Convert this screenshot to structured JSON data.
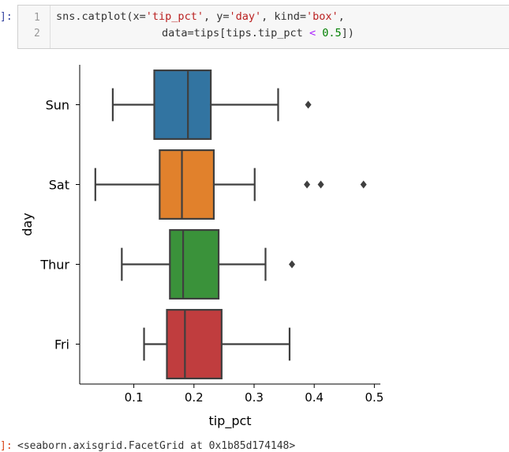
{
  "cell": {
    "in_prompt": "]:",
    "line_numbers": [
      "1",
      "2"
    ],
    "line1": {
      "t1": "sns.catplot(x=",
      "s1": "'tip_pct'",
      "t2": ", y=",
      "s2": "'day'",
      "t3": ", kind=",
      "s3": "'box'",
      "t4": ","
    },
    "line2": {
      "t1": "data=tips[tips.tip_pct ",
      "op": "<",
      "t2": " ",
      "num": "0.5",
      "t3": "])"
    },
    "out_prompt": "]:",
    "out_text": "<seaborn.axisgrid.FacetGrid at 0x1b85d174148>"
  },
  "chart_data": {
    "type": "box",
    "orientation": "horizontal",
    "xlabel": "tip_pct",
    "ylabel": "day",
    "xlim": [
      0.01,
      0.51
    ],
    "xticks": [
      0.1,
      0.2,
      0.3,
      0.4,
      0.5
    ],
    "xtick_labels": [
      "0.1",
      "0.2",
      "0.3",
      "0.4",
      "0.5"
    ],
    "categories": [
      "Sun",
      "Sat",
      "Thur",
      "Fri"
    ],
    "boxes": [
      {
        "category": "Sun",
        "color": "#3274a1",
        "whisker_low": 0.065,
        "q1": 0.134,
        "median": 0.19,
        "q3": 0.228,
        "whisker_high": 0.34,
        "outliers": [
          0.39
        ]
      },
      {
        "category": "Sat",
        "color": "#e1812c",
        "whisker_low": 0.036,
        "q1": 0.143,
        "median": 0.18,
        "q3": 0.233,
        "whisker_high": 0.301,
        "outliers": [
          0.388,
          0.411,
          0.482
        ]
      },
      {
        "category": "Thur",
        "color": "#3a923a",
        "whisker_low": 0.08,
        "q1": 0.16,
        "median": 0.182,
        "q3": 0.241,
        "whisker_high": 0.319,
        "outliers": [
          0.363
        ]
      },
      {
        "category": "Fri",
        "color": "#c03d3e",
        "whisker_low": 0.117,
        "q1": 0.155,
        "median": 0.185,
        "q3": 0.246,
        "whisker_high": 0.359,
        "outliers": []
      }
    ],
    "grid": false
  }
}
